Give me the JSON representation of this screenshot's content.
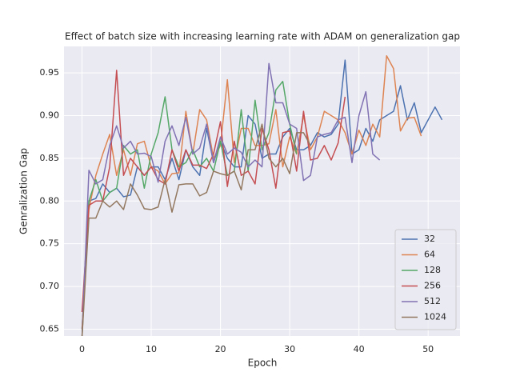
{
  "chart_data": {
    "type": "line",
    "title": "Effect of batch size with increasing learning rate with ADAM on generalization gap",
    "xlabel": "Epoch",
    "ylabel": "Genralization Gap",
    "x": [
      0,
      1,
      2,
      3,
      4,
      5,
      6,
      7,
      8,
      9,
      10,
      11,
      12,
      13,
      14,
      15,
      16,
      17,
      18,
      19,
      20,
      21,
      22,
      23,
      24,
      25,
      26,
      27,
      28,
      29,
      30,
      31,
      32,
      33,
      34,
      35,
      36,
      37,
      38,
      39,
      40,
      41,
      42,
      43,
      44,
      45,
      46,
      47,
      48,
      49,
      50,
      51,
      52
    ],
    "xlim": [
      -2.6,
      54.6
    ],
    "xticks": [
      0,
      10,
      20,
      30,
      40,
      50
    ],
    "ylim": [
      0.642,
      0.981
    ],
    "yticks": [
      0.65,
      {
        "value": 0.7,
        "label": "0.70"
      },
      0.75,
      {
        "value": 0.8,
        "label": "0.80"
      },
      0.85,
      {
        "value": 0.9,
        "label": "0.90"
      },
      0.95
    ],
    "grid": true,
    "legend": "lower right",
    "series": [
      {
        "name": "32",
        "color": "#4c72b0",
        "values": [
          0.65,
          0.8,
          0.803,
          0.82,
          0.81,
          0.815,
          0.805,
          0.807,
          0.84,
          0.83,
          0.84,
          0.84,
          0.825,
          0.85,
          0.825,
          0.86,
          0.84,
          0.83,
          0.885,
          0.845,
          0.87,
          0.85,
          0.84,
          0.84,
          0.9,
          0.89,
          0.85,
          0.855,
          0.855,
          0.875,
          0.885,
          0.86,
          0.86,
          0.865,
          0.88,
          0.875,
          0.878,
          0.89,
          0.965,
          0.855,
          0.86,
          0.885,
          0.87,
          0.895,
          0.9,
          0.905,
          0.935,
          0.895,
          0.915,
          0.88,
          0.895,
          0.91,
          0.895
        ]
      },
      {
        "name": "64",
        "color": "#dd8452",
        "values": [
          0.65,
          0.79,
          0.83,
          0.855,
          0.878,
          0.83,
          0.86,
          0.83,
          0.867,
          0.87,
          0.84,
          0.835,
          0.82,
          0.832,
          0.833,
          0.905,
          0.855,
          0.907,
          0.895,
          0.85,
          0.865,
          0.942,
          0.845,
          0.885,
          0.885,
          0.865,
          0.865,
          0.867,
          0.907,
          0.84,
          0.875,
          0.855,
          0.9,
          0.86,
          0.875,
          0.905,
          0.9,
          0.895,
          0.88,
          0.855,
          0.883,
          0.865,
          0.89,
          0.875,
          0.97,
          0.955,
          0.882,
          0.897,
          0.898,
          0.876,
          null,
          null,
          null
        ]
      },
      {
        "name": "128",
        "color": "#55a868",
        "values": [
          0.64,
          0.8,
          0.825,
          0.8,
          0.81,
          0.815,
          0.865,
          0.855,
          0.86,
          0.815,
          0.855,
          0.88,
          0.922,
          0.86,
          0.84,
          0.845,
          0.86,
          0.84,
          0.85,
          0.835,
          0.87,
          0.83,
          0.835,
          0.907,
          0.835,
          0.918,
          0.86,
          0.88,
          0.93,
          0.94,
          0.89,
          0.855,
          null,
          null,
          null,
          null,
          null,
          null,
          null,
          null,
          null,
          null,
          null,
          null,
          null,
          null,
          null,
          null,
          null,
          null,
          null,
          null,
          null
        ]
      },
      {
        "name": "256",
        "color": "#c44e52",
        "values": [
          0.67,
          0.795,
          0.8,
          0.8,
          0.84,
          0.953,
          0.83,
          0.85,
          0.84,
          0.83,
          0.84,
          0.825,
          0.82,
          0.86,
          0.835,
          0.86,
          0.842,
          0.842,
          0.838,
          0.855,
          0.893,
          0.817,
          0.87,
          0.83,
          0.835,
          0.82,
          0.885,
          0.86,
          0.815,
          0.88,
          0.882,
          0.835,
          0.905,
          0.848,
          0.85,
          0.865,
          0.848,
          0.868,
          0.922,
          null,
          null,
          null,
          null,
          null,
          null,
          null,
          null,
          null,
          null,
          null,
          null,
          null,
          null
        ]
      },
      {
        "name": "512",
        "color": "#8172b3",
        "values": [
          0.64,
          0.836,
          0.82,
          0.825,
          0.865,
          0.888,
          0.862,
          0.87,
          0.855,
          0.856,
          0.852,
          0.822,
          0.87,
          0.888,
          0.865,
          0.898,
          0.855,
          0.862,
          0.89,
          0.845,
          0.875,
          0.855,
          0.862,
          0.857,
          0.84,
          0.848,
          0.84,
          0.961,
          0.915,
          0.915,
          0.89,
          0.885,
          0.824,
          0.83,
          0.875,
          0.878,
          0.88,
          0.895,
          0.898,
          0.845,
          0.9,
          0.928,
          0.855,
          0.848,
          null,
          null,
          null,
          null,
          null,
          null,
          null,
          null,
          null
        ]
      },
      {
        "name": "1024",
        "color": "#937860",
        "values": [
          0.64,
          0.78,
          0.78,
          0.8,
          0.793,
          0.8,
          0.79,
          0.82,
          0.807,
          0.791,
          0.79,
          0.793,
          0.825,
          0.787,
          0.819,
          0.82,
          0.82,
          0.806,
          0.81,
          0.835,
          0.832,
          0.83,
          0.835,
          0.813,
          0.86,
          0.86,
          0.89,
          0.85,
          0.84,
          0.85,
          0.832,
          0.88,
          0.88,
          0.865,
          null,
          null,
          null,
          null,
          null,
          null,
          null,
          null,
          null,
          null,
          null,
          null,
          null,
          null,
          null,
          null,
          null,
          null,
          null
        ]
      }
    ]
  }
}
